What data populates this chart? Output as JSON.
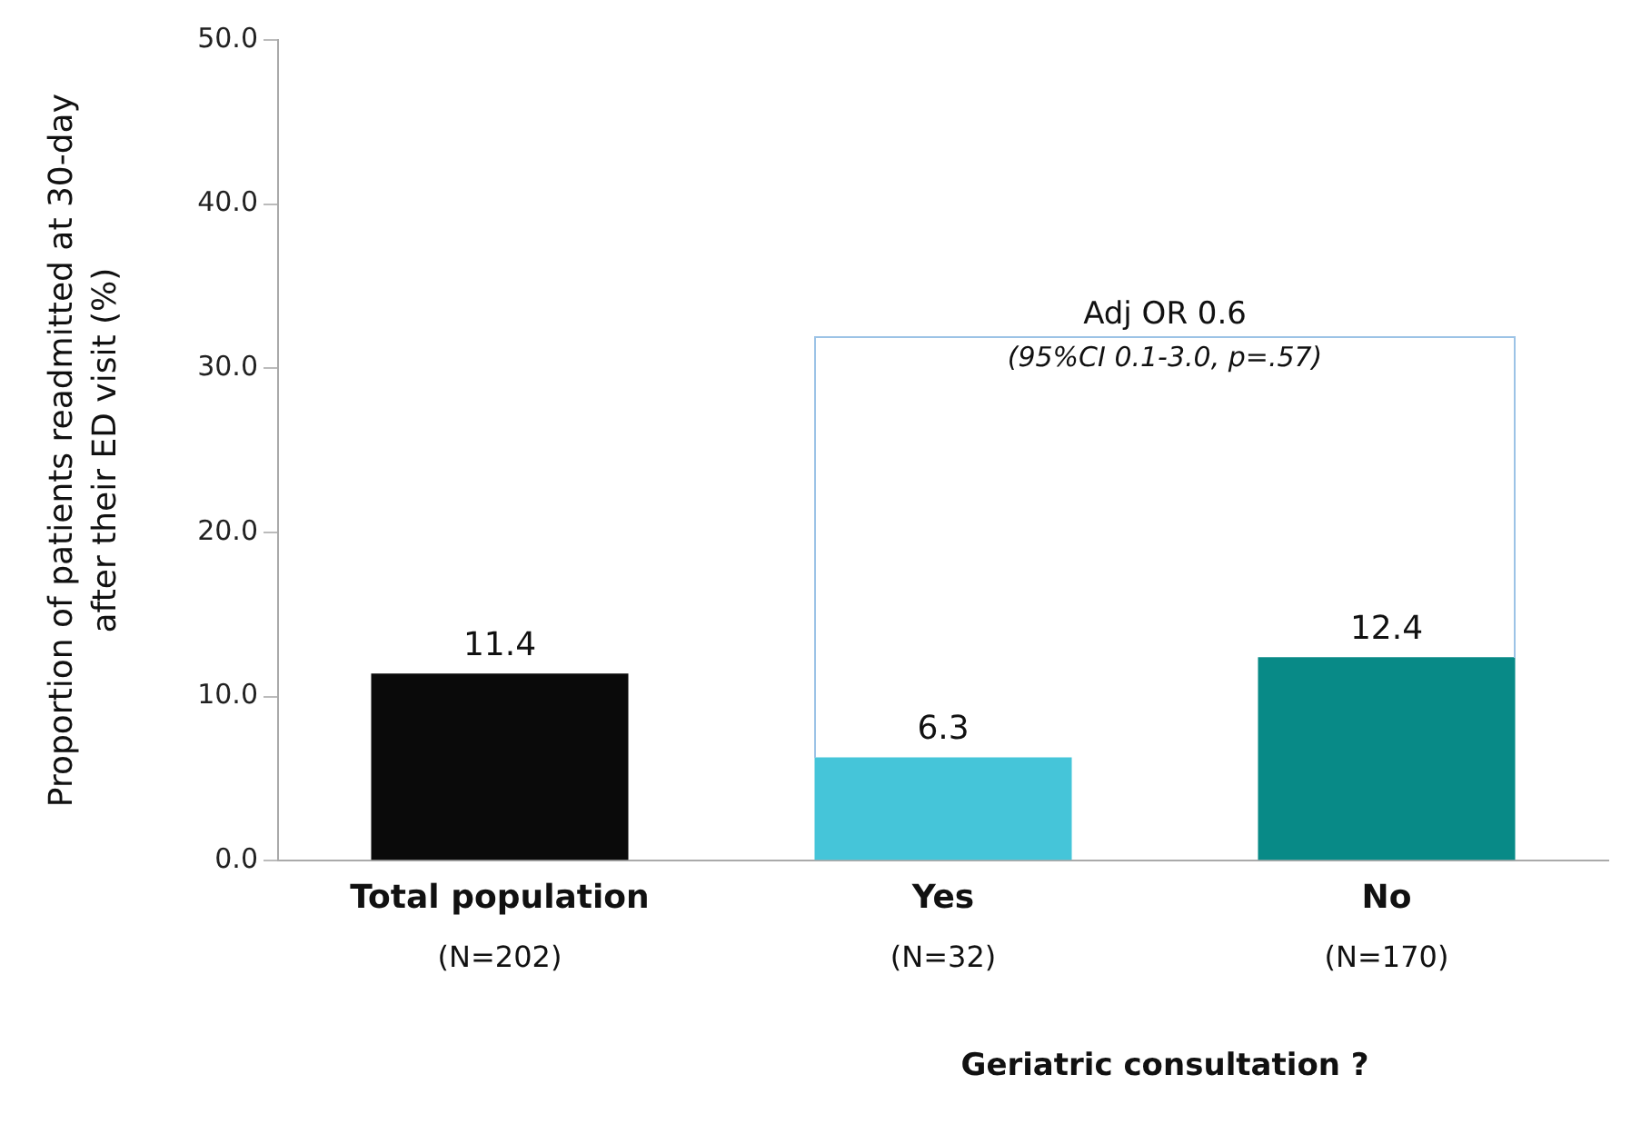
{
  "chart_data": {
    "type": "bar",
    "categories": [
      "Total population\n(N=202)",
      "Yes\n(N=32)",
      "No\n(N=170)"
    ],
    "values": [
      11.4,
      6.3,
      12.4
    ],
    "colors": [
      "#0a0a0a",
      "#45c5d9",
      "#088a87"
    ],
    "ylabel": "Proportion of patients readmitted at 30-day\nafter their ED visit (%)",
    "xlabel": "Geriatric consultation ?",
    "annotations": [
      "Adj OR 0.6",
      "(95%CI 0.1-3.0, p=.57)"
    ],
    "ylim": [
      0,
      50
    ],
    "yticks": [
      {
        "value": 0,
        "label": "0.0"
      },
      {
        "value": 10,
        "label": "10.0"
      },
      {
        "value": 20,
        "label": "20.0"
      },
      {
        "value": 30,
        "label": "30.0"
      },
      {
        "value": 40,
        "label": "40.0"
      },
      {
        "value": 50,
        "label": "50.0"
      }
    ],
    "data_labels": true,
    "grid": false,
    "legend": false
  }
}
